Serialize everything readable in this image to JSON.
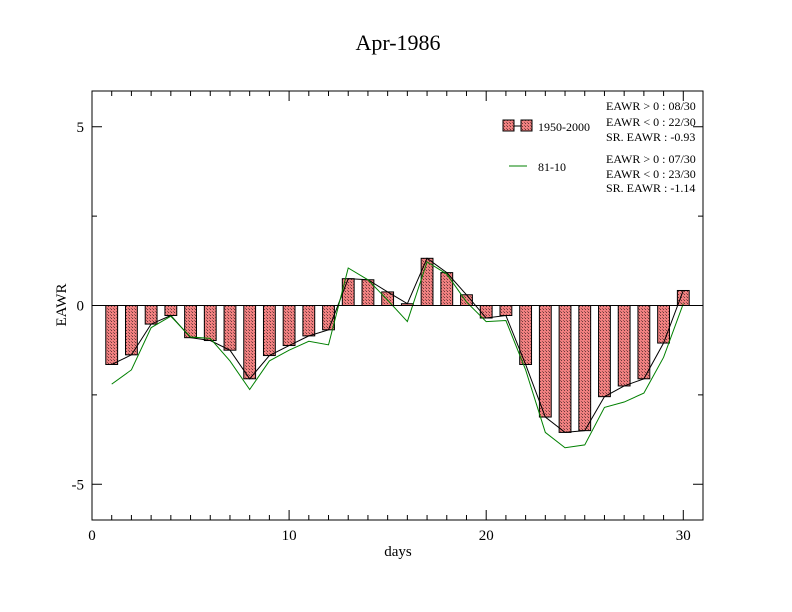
{
  "chart_data": {
    "type": "bar",
    "title": "Apr-1986",
    "xlabel": "days",
    "ylabel": "EAWR",
    "xlim": [
      0,
      31
    ],
    "ylim": [
      -6,
      6
    ],
    "x_ticks": [
      0,
      10,
      20,
      30
    ],
    "x_tick_labels": [
      "0",
      "10",
      "20",
      "30"
    ],
    "y_ticks": [
      -5,
      0,
      5
    ],
    "y_tick_labels": [
      "-5",
      "0",
      "5"
    ],
    "legend_position": "top-right",
    "x": [
      1,
      2,
      3,
      4,
      5,
      6,
      7,
      8,
      9,
      10,
      11,
      12,
      13,
      14,
      15,
      16,
      17,
      18,
      19,
      20,
      21,
      22,
      23,
      24,
      25,
      26,
      27,
      28,
      29,
      30
    ],
    "series": [
      {
        "name": "1950-2000",
        "kind": "bar",
        "color": "#f08080",
        "values": [
          -1.65,
          -1.38,
          -0.52,
          -0.28,
          -0.9,
          -0.98,
          -1.25,
          -2.05,
          -1.4,
          -1.12,
          -0.85,
          -0.68,
          0.75,
          0.72,
          0.38,
          0.05,
          1.32,
          0.92,
          0.3,
          -0.35,
          -0.28,
          -1.65,
          -3.12,
          -3.55,
          -3.5,
          -2.55,
          -2.25,
          -2.05,
          -1.05,
          0.42
        ]
      },
      {
        "name": "81-10",
        "kind": "line",
        "color": "#008000",
        "values": [
          -2.2,
          -1.8,
          -0.62,
          -0.3,
          -0.88,
          -0.92,
          -1.55,
          -2.35,
          -1.55,
          -1.25,
          -1.0,
          -1.1,
          1.05,
          0.72,
          0.15,
          -0.45,
          1.22,
          0.88,
          0.1,
          -0.45,
          -0.42,
          -1.8,
          -3.55,
          -3.98,
          -3.9,
          -2.85,
          -2.7,
          -2.45,
          -1.45,
          0.05
        ]
      }
    ],
    "stats": [
      [
        "EAWR > 0 : 08/30",
        "EAWR < 0 : 22/30",
        "SR. EAWR : -0.93"
      ],
      [
        "EAWR > 0 : 07/30",
        "EAWR < 0 : 23/30",
        "SR. EAWR : -1.14"
      ]
    ]
  }
}
